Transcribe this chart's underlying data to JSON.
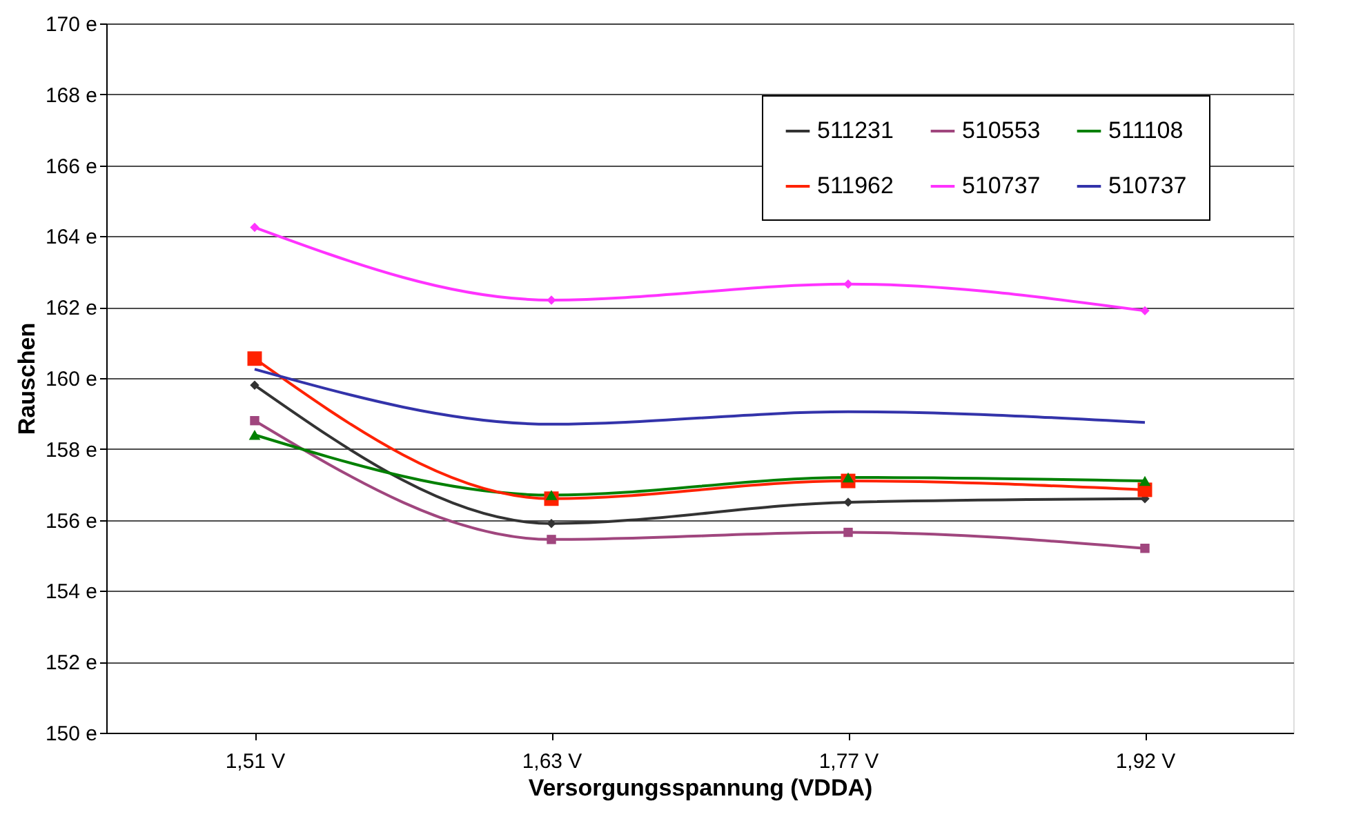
{
  "chart_data": {
    "type": "line",
    "xlabel": "Versorgungsspannung (VDDA)",
    "ylabel": "Rauschen",
    "categories": [
      "1,51 V",
      "1,63 V",
      "1,77 V",
      "1,92 V"
    ],
    "series": [
      {
        "name": "511231",
        "color": "#333333",
        "marker": "diamond",
        "values": [
          159.8,
          155.9,
          156.5,
          156.6
        ]
      },
      {
        "name": "510553",
        "color": "#a0467e",
        "marker": "square",
        "values": [
          158.8,
          155.45,
          155.65,
          155.2
        ]
      },
      {
        "name": "511108",
        "color": "#008000",
        "marker": "triangle",
        "values": [
          158.4,
          156.7,
          157.2,
          157.1
        ]
      },
      {
        "name": "511962",
        "color": "#ff2200",
        "marker": "square",
        "values": [
          160.55,
          156.6,
          157.1,
          156.85
        ]
      },
      {
        "name": "510737",
        "color": "#ff33ff",
        "marker": "diamond",
        "values": [
          164.25,
          162.2,
          162.65,
          161.9
        ]
      },
      {
        "name": "510737",
        "color": "#3333aa",
        "marker": "none",
        "values": [
          160.25,
          158.7,
          159.05,
          158.75
        ]
      }
    ],
    "ylim": [
      150,
      170
    ],
    "yticks": [
      {
        "value": 150,
        "label": "150 e"
      },
      {
        "value": 152,
        "label": "152 e"
      },
      {
        "value": 154,
        "label": "154 e"
      },
      {
        "value": 156,
        "label": "156 e"
      },
      {
        "value": 158,
        "label": "158 e"
      },
      {
        "value": 160,
        "label": "160 e"
      },
      {
        "value": 162,
        "label": "162 e"
      },
      {
        "value": 164,
        "label": "164 e"
      },
      {
        "value": 166,
        "label": "166 e"
      },
      {
        "value": 168,
        "label": "168 e"
      },
      {
        "value": 170,
        "label": "170 e"
      }
    ],
    "grid": "y",
    "legend": "top right",
    "line_style": "solid"
  }
}
